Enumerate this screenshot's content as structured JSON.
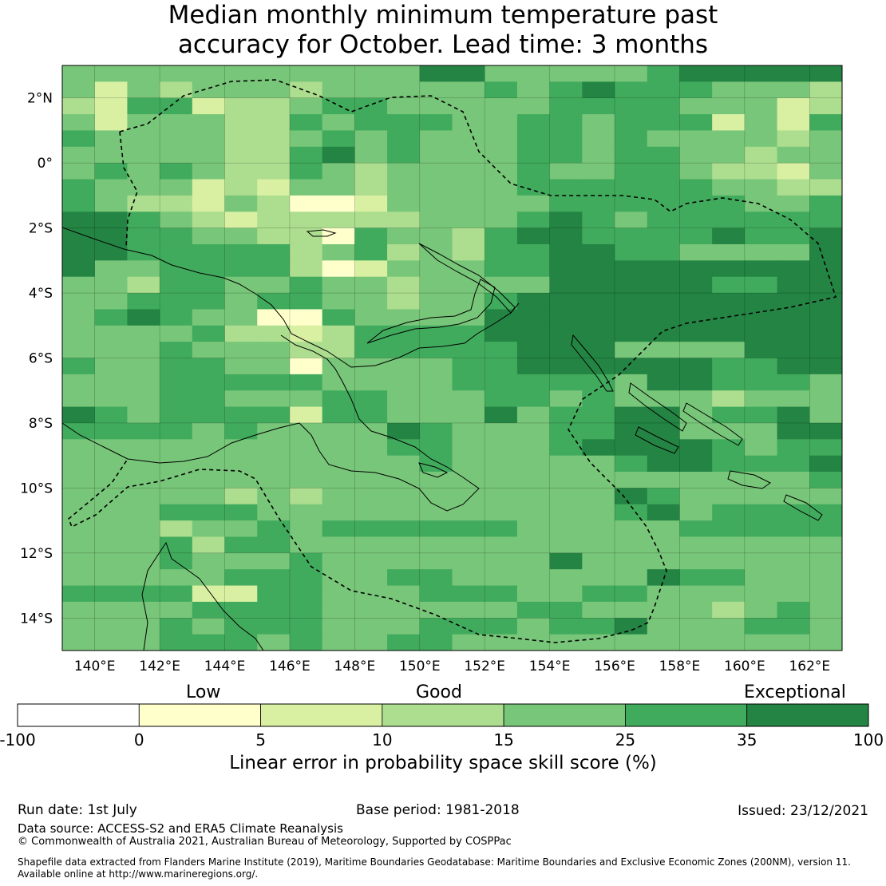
{
  "title_line1": "Median monthly minimum temperature past",
  "title_line2": "accuracy for October. Lead time: 3 months",
  "map": {
    "lon_ticks": [
      "140°E",
      "142°E",
      "144°E",
      "146°E",
      "148°E",
      "150°E",
      "152°E",
      "154°E",
      "156°E",
      "158°E",
      "160°E",
      "162°E"
    ],
    "lat_ticks": [
      "2°N",
      "0°",
      "2°S",
      "4°S",
      "6°S",
      "8°S",
      "10°S",
      "12°S",
      "14°S"
    ],
    "lon_range": [
      139,
      163
    ],
    "lat_range": [
      -15,
      3
    ],
    "grid_resolution_deg": 0.833,
    "skill_grid_rows_north_to_south": [
      "333333333335533333455555",
      "313233323333343454443332",
      "214412234433333444433312",
      "313332243444334434441314",
      "433332234343334434333323",
      "333332245343334434433233",
      "343432243233334334432213",
      "433312133233334444443322",
      "432213200133333444444334",
      "554321222223334543444444",
      "554433220433245544445445",
      "554444423423244554433335",
      "533444420133344555555555",
      "332443343323333555554455",
      "334443443323345555555555",
      "345433004333355555555555",
      "333342212444455555555555",
      "333433322444445553333555",
      "433443303333445555554455",
      "333444443333444443554443",
      "333443334433344343332333",
      "543444414433353445534453",
      "444434333354333445533355",
      "333333333344333455554344",
      "333333333334333334554445",
      "333333333333333333333334",
      "333332323333333335433333",
      "333444333333333334534444",
      "333233434444443333344444",
      "333424433333333333333333",
      "333433343333333533333333",
      "333334443344333333544333",
      "444411443334443344333333",
      "333344443333334433332343",
      "333434443334443445333443",
      "333444343344333333333333"
    ]
  },
  "legend": {
    "category_low": "Low",
    "category_good": "Good",
    "category_exceptional": "Exceptional",
    "bins": [
      {
        "from": -100,
        "to": 0,
        "color": "#ffffff"
      },
      {
        "from": 0,
        "to": 5,
        "color": "#ffffcc"
      },
      {
        "from": 5,
        "to": 10,
        "color": "#d9f0a3"
      },
      {
        "from": 10,
        "to": 15,
        "color": "#addd8e"
      },
      {
        "from": 15,
        "to": 25,
        "color": "#78c679"
      },
      {
        "from": 25,
        "to": 35,
        "color": "#41ab5d"
      },
      {
        "from": 35,
        "to": 100,
        "color": "#238443"
      }
    ],
    "tick_labels": [
      "-100",
      "0",
      "5",
      "10",
      "15",
      "25",
      "35",
      "100"
    ],
    "axis_label": "Linear error in probability space skill score (%)"
  },
  "footer": {
    "run_date": "Run date: 1st July",
    "base_period": "Base period: 1981-2018",
    "issued": "Issued: 23/12/2021",
    "data_source": "Data source: ACCESS-S2 and ERA5 Climate Reanalysis",
    "copyright": "© Commonwealth of Australia 2021, Australian Bureau of Meteorology, Supported by COSPPac",
    "shapefile_line1": "Shapefile data extracted from Flanders Marine Institute (2019), Maritime Boundaries Geodatabase: Maritime Boundaries and Exclusive Economic Zones (200NM), version 11.",
    "shapefile_line2": "Available online at http://www.marineregions.org/."
  }
}
